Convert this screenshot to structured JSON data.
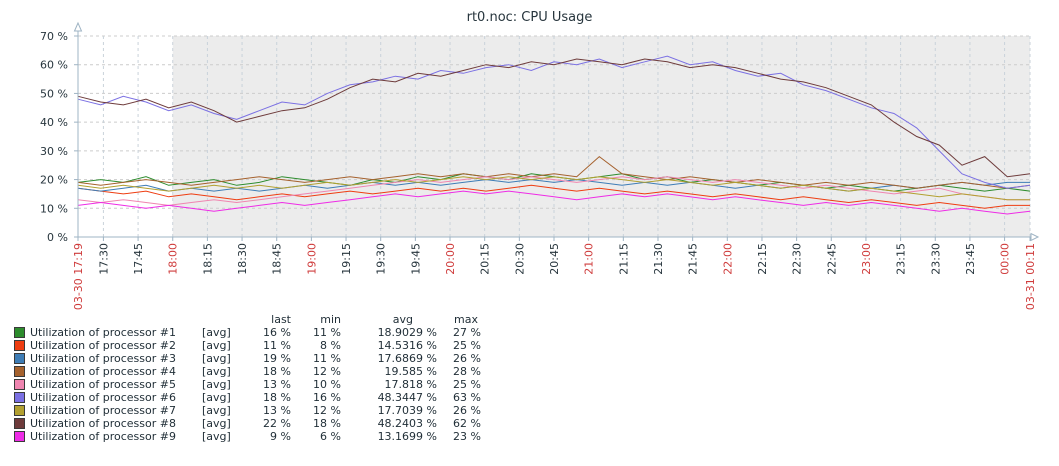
{
  "title": "rt0.noc: CPU Usage",
  "colors": {
    "background": "#ffffff",
    "panel_shade": "#ececec",
    "grid_horizontal": "#cccccc",
    "grid_vertical": "#c9d2da",
    "axis": "#9fb4c4",
    "text": "#27353d",
    "tick_red": "#cf3c3c",
    "legend_text": "#1f2d36",
    "swatch_border": "#3a3a3a"
  },
  "chart_data": {
    "type": "line",
    "title": "rt0.noc: CPU Usage",
    "ylim": [
      0,
      70
    ],
    "y_unit": "%",
    "y_ticks": [
      0,
      10,
      20,
      30,
      40,
      50,
      60,
      70
    ],
    "grid": true,
    "duration_minutes": 412,
    "x_range": [
      "03-30 17:19",
      "03-31 00:11"
    ],
    "non_working_shade_from_minute": 41,
    "x_ticks": [
      {
        "minute": 0,
        "label": "03-30 17:19",
        "red": true
      },
      {
        "minute": 11,
        "label": "17:30"
      },
      {
        "minute": 26,
        "label": "17:45"
      },
      {
        "minute": 41,
        "label": "18:00",
        "red": true
      },
      {
        "minute": 56,
        "label": "18:15"
      },
      {
        "minute": 71,
        "label": "18:30"
      },
      {
        "minute": 86,
        "label": "18:45"
      },
      {
        "minute": 101,
        "label": "19:00",
        "red": true
      },
      {
        "minute": 116,
        "label": "19:15"
      },
      {
        "minute": 131,
        "label": "19:30"
      },
      {
        "minute": 146,
        "label": "19:45"
      },
      {
        "minute": 161,
        "label": "20:00",
        "red": true
      },
      {
        "minute": 176,
        "label": "20:15"
      },
      {
        "minute": 191,
        "label": "20:30"
      },
      {
        "minute": 206,
        "label": "20:45"
      },
      {
        "minute": 221,
        "label": "21:00",
        "red": true
      },
      {
        "minute": 236,
        "label": "21:15"
      },
      {
        "minute": 251,
        "label": "21:30"
      },
      {
        "minute": 266,
        "label": "21:45"
      },
      {
        "minute": 281,
        "label": "22:00",
        "red": true
      },
      {
        "minute": 296,
        "label": "22:15"
      },
      {
        "minute": 311,
        "label": "22:30"
      },
      {
        "minute": 326,
        "label": "22:45"
      },
      {
        "minute": 341,
        "label": "23:00",
        "red": true
      },
      {
        "minute": 356,
        "label": "23:15"
      },
      {
        "minute": 371,
        "label": "23:30"
      },
      {
        "minute": 386,
        "label": "23:45"
      },
      {
        "minute": 401,
        "label": "00:00",
        "red": true
      },
      {
        "minute": 412,
        "label": "03-31 00:11",
        "red": true
      }
    ],
    "series": [
      {
        "name": "Utilization of processor #1",
        "color": "#2d8c2d",
        "values": [
          19,
          20,
          19,
          21,
          18,
          19,
          20,
          18,
          19,
          21,
          20,
          19,
          18,
          20,
          19,
          21,
          20,
          22,
          21,
          20,
          22,
          21,
          20,
          21,
          22,
          20,
          21,
          19,
          20,
          19,
          18,
          19,
          18,
          17,
          18,
          17,
          16,
          17,
          18,
          17,
          16,
          17,
          16
        ]
      },
      {
        "name": "Utilization of processor #2",
        "color": "#ee3d11",
        "values": [
          17,
          16,
          15,
          16,
          14,
          15,
          14,
          13,
          14,
          15,
          14,
          15,
          16,
          15,
          16,
          17,
          16,
          17,
          16,
          17,
          18,
          17,
          16,
          17,
          16,
          15,
          16,
          15,
          14,
          15,
          14,
          13,
          14,
          13,
          12,
          13,
          12,
          11,
          12,
          11,
          10,
          11,
          11
        ]
      },
      {
        "name": "Utilization of processor #3",
        "color": "#3e7db6",
        "values": [
          17,
          16,
          17,
          18,
          16,
          17,
          16,
          17,
          16,
          17,
          18,
          17,
          18,
          19,
          18,
          19,
          18,
          19,
          20,
          19,
          20,
          19,
          20,
          19,
          18,
          19,
          18,
          19,
          18,
          17,
          18,
          17,
          18,
          17,
          16,
          17,
          18,
          17,
          18,
          19,
          18,
          19,
          19
        ]
      },
      {
        "name": "Utilization of processor #4",
        "color": "#a5612d",
        "values": [
          19,
          18,
          19,
          20,
          19,
          18,
          19,
          20,
          21,
          20,
          19,
          20,
          21,
          20,
          21,
          22,
          21,
          22,
          21,
          22,
          21,
          22,
          21,
          28,
          22,
          21,
          20,
          21,
          20,
          19,
          20,
          19,
          18,
          19,
          18,
          19,
          18,
          17,
          18,
          19,
          18,
          17,
          18
        ]
      },
      {
        "name": "Utilization of processor #5",
        "color": "#ef85b0",
        "values": [
          13,
          12,
          13,
          12,
          11,
          12,
          13,
          12,
          13,
          14,
          15,
          16,
          17,
          18,
          19,
          20,
          19,
          20,
          21,
          20,
          21,
          20,
          19,
          20,
          21,
          20,
          21,
          20,
          19,
          20,
          19,
          18,
          17,
          18,
          17,
          16,
          15,
          16,
          17,
          15,
          14,
          13,
          13
        ]
      },
      {
        "name": "Utilization of processor #6",
        "color": "#7b70e3",
        "values": [
          48,
          46,
          49,
          47,
          44,
          46,
          43,
          41,
          44,
          47,
          46,
          50,
          53,
          54,
          56,
          55,
          58,
          57,
          59,
          60,
          58,
          61,
          60,
          62,
          59,
          61,
          63,
          60,
          61,
          58,
          56,
          57,
          53,
          51,
          48,
          45,
          43,
          38,
          30,
          22,
          19,
          17,
          18
        ]
      },
      {
        "name": "Utilization of processor #7",
        "color": "#b2a030",
        "values": [
          18,
          17,
          18,
          17,
          16,
          17,
          18,
          17,
          18,
          17,
          18,
          19,
          18,
          19,
          20,
          19,
          20,
          21,
          20,
          21,
          20,
          21,
          20,
          21,
          20,
          19,
          20,
          19,
          18,
          19,
          18,
          17,
          18,
          17,
          16,
          17,
          16,
          15,
          14,
          15,
          14,
          13,
          13
        ]
      },
      {
        "name": "Utilization of processor #8",
        "color": "#6e3b3b",
        "values": [
          49,
          47,
          46,
          48,
          45,
          47,
          44,
          40,
          42,
          44,
          45,
          48,
          52,
          55,
          54,
          57,
          56,
          58,
          60,
          59,
          61,
          60,
          62,
          61,
          60,
          62,
          61,
          59,
          60,
          59,
          57,
          55,
          54,
          52,
          49,
          46,
          40,
          35,
          32,
          25,
          28,
          21,
          22
        ]
      },
      {
        "name": "Utilization of processor #9",
        "color": "#ee2ce6",
        "values": [
          11,
          12,
          11,
          10,
          11,
          10,
          9,
          10,
          11,
          12,
          11,
          12,
          13,
          14,
          15,
          14,
          15,
          16,
          15,
          16,
          15,
          14,
          13,
          14,
          15,
          14,
          15,
          14,
          13,
          14,
          13,
          12,
          11,
          12,
          11,
          12,
          11,
          10,
          9,
          10,
          9,
          8,
          9
        ]
      }
    ],
    "legend": {
      "position": "bottom-left",
      "columns": [
        "last",
        "min",
        "avg",
        "max"
      ],
      "function_label": "[avg]",
      "rows": [
        {
          "label": "Utilization of processor #1",
          "last": "16 %",
          "min": "11 %",
          "avg": "18.9029 %",
          "max": "27 %"
        },
        {
          "label": "Utilization of processor #2",
          "last": "11 %",
          "min": "8 %",
          "avg": "14.5316 %",
          "max": "25 %"
        },
        {
          "label": "Utilization of processor #3",
          "last": "19 %",
          "min": "11 %",
          "avg": "17.6869 %",
          "max": "26 %"
        },
        {
          "label": "Utilization of processor #4",
          "last": "18 %",
          "min": "12 %",
          "avg": "19.585 %",
          "max": "28 %"
        },
        {
          "label": "Utilization of processor #5",
          "last": "13 %",
          "min": "10 %",
          "avg": "17.818 %",
          "max": "25 %"
        },
        {
          "label": "Utilization of processor #6",
          "last": "18 %",
          "min": "16 %",
          "avg": "48.3447 %",
          "max": "63 %"
        },
        {
          "label": "Utilization of processor #7",
          "last": "13 %",
          "min": "12 %",
          "avg": "17.7039 %",
          "max": "26 %"
        },
        {
          "label": "Utilization of processor #8",
          "last": "22 %",
          "min": "18 %",
          "avg": "48.2403 %",
          "max": "62 %"
        },
        {
          "label": "Utilization of processor #9",
          "last": "9 %",
          "min": "6 %",
          "avg": "13.1699 %",
          "max": "23 %"
        }
      ]
    }
  }
}
